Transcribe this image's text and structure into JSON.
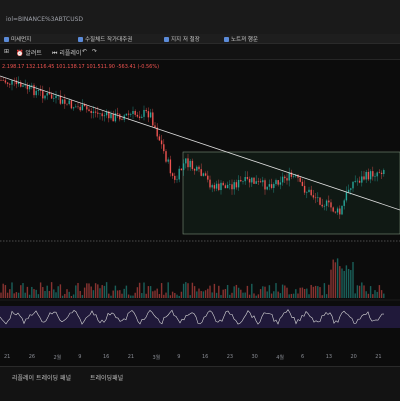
{
  "browser": {
    "url": "iol=BINANCE%3ABTCUSD"
  },
  "bookmarks": [
    {
      "icon": "folder-icon",
      "label": "미세먼지"
    },
    {
      "icon": "folder-icon",
      "label": "수질체드 작가대주권"
    },
    {
      "icon": "folder-icon",
      "label": "지지 저 철장"
    },
    {
      "icon": "folder-icon",
      "label": "노트져 행운"
    }
  ],
  "toolbar": {
    "indicator_label": "알려트",
    "replay_label": "리플레이"
  },
  "ohlc": {
    "o": "2.198.17",
    "h": "132.116.45",
    "l": "101.138.17",
    "c": "101.511.90",
    "change": "-563.41 (-0.56%)"
  },
  "x_axis_ticks": [
    "21",
    "26",
    "2월",
    "9",
    "16",
    "21",
    "3월",
    "9",
    "16",
    "23",
    "30",
    "4월",
    "6",
    "13",
    "20",
    "21"
  ],
  "bottom_tabs": [
    "리플레이 트레이딩 패널",
    "트레이딩패널"
  ],
  "colors": {
    "up": "#26a69a",
    "down": "#ef5350",
    "trendline": "#e0e0e0",
    "range_box": "#1f3a2a",
    "rsi_band": "#3b2f6b"
  }
}
